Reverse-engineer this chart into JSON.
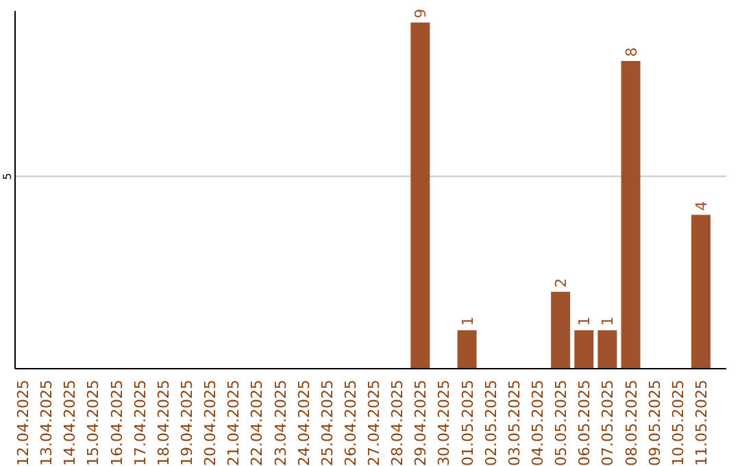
{
  "chart_data": {
    "type": "bar",
    "categories": [
      "12.04.2025",
      "13.04.2025",
      "14.04.2025",
      "15.04.2025",
      "16.04.2025",
      "17.04.2025",
      "18.04.2025",
      "19.04.2025",
      "20.04.2025",
      "21.04.2025",
      "22.04.2025",
      "23.04.2025",
      "24.04.2025",
      "25.04.2025",
      "26.04.2025",
      "27.04.2025",
      "28.04.2025",
      "29.04.2025",
      "30.04.2025",
      "01.05.2025",
      "02.05.2025",
      "03.05.2025",
      "04.05.2025",
      "05.05.2025",
      "06.05.2025",
      "07.05.2025",
      "08.05.2025",
      "09.05.2025",
      "10.05.2025",
      "11.05.2025"
    ],
    "values": [
      null,
      null,
      null,
      null,
      null,
      null,
      null,
      null,
      null,
      null,
      null,
      null,
      null,
      null,
      null,
      null,
      null,
      9,
      null,
      1,
      null,
      null,
      null,
      2,
      1,
      1,
      8,
      null,
      null,
      4
    ],
    "value_labels": [
      null,
      null,
      null,
      null,
      null,
      null,
      null,
      null,
      null,
      null,
      null,
      null,
      null,
      null,
      null,
      null,
      null,
      "9",
      null,
      "1",
      null,
      null,
      null,
      "2",
      "1",
      "1",
      "8",
      null,
      null,
      "4"
    ],
    "color": "#a0522d",
    "ylim": [
      0,
      9.3
    ],
    "yticks": [
      5
    ],
    "grid": "y"
  }
}
